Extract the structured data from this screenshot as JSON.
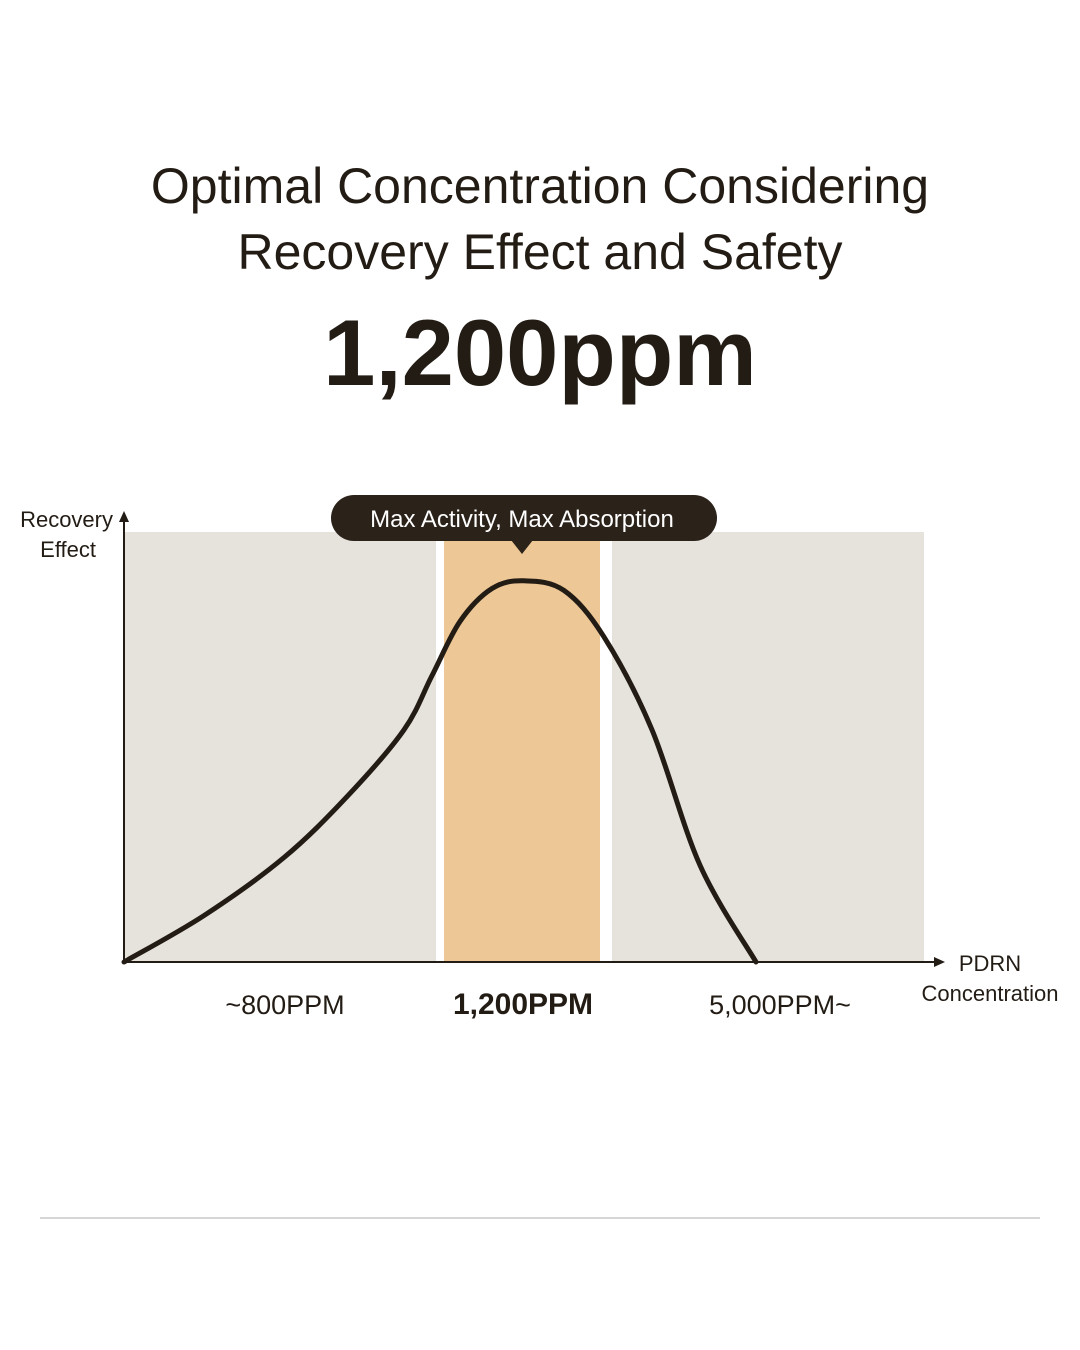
{
  "title": {
    "line1": "Optimal Concentration Considering",
    "line2": "Recovery Effect and Safety",
    "headline": "1,200ppm"
  },
  "colors": {
    "background": "#ffffff",
    "zone_gray": "#e6e2dc",
    "zone_highlight": "#edc795",
    "curve": "#231c15",
    "callout_bg": "#2b221a",
    "callout_text": "#ffffff",
    "divider": "#d6d6d6"
  },
  "chart_data": {
    "type": "line",
    "title": "",
    "ylabel": [
      "Recovery",
      "Effect"
    ],
    "xlabel": [
      "PDRN",
      "Concentration"
    ],
    "categories": [
      "~800PPM",
      "1,200PPM",
      "5,000PPM~"
    ],
    "highlight_category": "1,200PPM",
    "callout": "Max Activity, Max Absorption",
    "xlim": [
      0,
      100
    ],
    "ylim": [
      0,
      100
    ],
    "zones": [
      {
        "label": "~800PPM",
        "x_start": 0,
        "x_end": 39,
        "highlight": false
      },
      {
        "label": "1,200PPM",
        "x_start": 40,
        "x_end": 59.5,
        "highlight": true
      },
      {
        "label": "5,000PPM~",
        "x_start": 61,
        "x_end": 100,
        "highlight": false
      }
    ],
    "series": [
      {
        "values": [
          {
            "x": 0,
            "y": 0
          },
          {
            "x": 10,
            "y": 12
          },
          {
            "x": 20,
            "y": 27
          },
          {
            "x": 28,
            "y": 43
          },
          {
            "x": 35,
            "y": 60
          },
          {
            "x": 38.5,
            "y": 74
          },
          {
            "x": 42,
            "y": 88
          },
          {
            "x": 46,
            "y": 96.5
          },
          {
            "x": 50,
            "y": 98.5
          },
          {
            "x": 55,
            "y": 96
          },
          {
            "x": 60,
            "y": 84
          },
          {
            "x": 66,
            "y": 60
          },
          {
            "x": 72,
            "y": 25
          },
          {
            "x": 79,
            "y": 0
          }
        ]
      }
    ]
  }
}
